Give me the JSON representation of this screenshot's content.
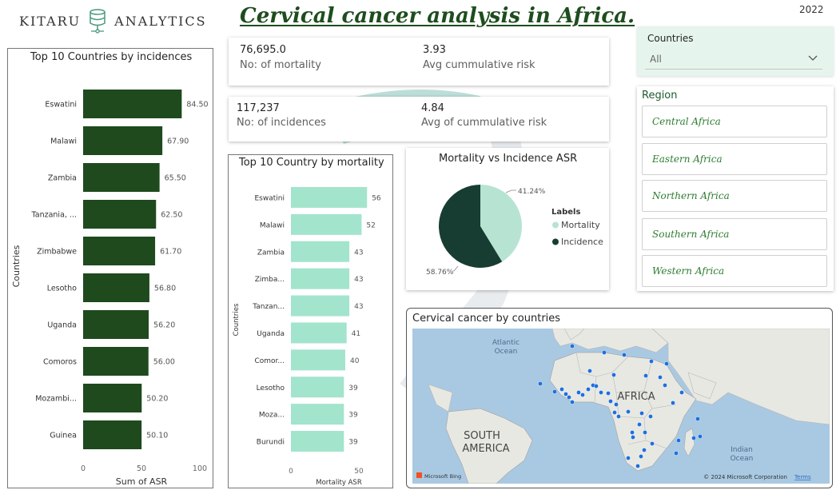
{
  "header": {
    "brand_left": "KITARU",
    "brand_right": "ANALYTICS",
    "title": "Cervical cancer analysis in Africa.",
    "year": "2022"
  },
  "kpis": {
    "mortality_value": "76,695.0",
    "mortality_label": "No: of mortality",
    "avg_risk_value": "3.93",
    "avg_risk_label": "Avg cummulative risk",
    "incidence_value": "117,237",
    "incidence_label": "No: of incidences",
    "avg_risk2_value": "4.84",
    "avg_risk2_label": "Avg of cummulative risk"
  },
  "countries_slicer": {
    "title": "Countries",
    "value": "All"
  },
  "region_slicer": {
    "title": "Region",
    "items": [
      "Central Africa",
      "Eastern Africa",
      "Northern Africa",
      "Southern Africa",
      "Western Africa"
    ]
  },
  "map": {
    "title": "Cervical cancer by countries",
    "labels": [
      "Atlantic",
      "Ocean",
      "AFRICA",
      "SOUTH",
      "AMERICA",
      "Indian",
      "Ocean"
    ],
    "bing": "Microsoft Bing",
    "copyright": "© 2024 Microsoft Corporation",
    "terms": "Terms"
  },
  "chart_data": [
    {
      "type": "bar",
      "orientation": "horizontal",
      "title": "Top 10 Countries by incidences",
      "categories": [
        "Eswatini",
        "Malawi",
        "Zambia",
        "Tanzania, ...",
        "Zimbabwe",
        "Lesotho",
        "Uganda",
        "Comoros",
        "Mozambi...",
        "Guinea"
      ],
      "values": [
        84.5,
        67.9,
        65.5,
        62.5,
        61.7,
        56.8,
        56.2,
        56.0,
        50.2,
        50.1
      ],
      "value_labels": [
        "84.50",
        "67.90",
        "65.50",
        "62.50",
        "61.70",
        "56.80",
        "56.20",
        "56.00",
        "50.20",
        "50.10"
      ],
      "xlabel": "Sum of ASR",
      "ylabel": "Countries",
      "xlim": [
        0,
        100
      ],
      "xticks": [
        "0",
        "50",
        "100"
      ],
      "color": "#1e4a1e"
    },
    {
      "type": "bar",
      "orientation": "horizontal",
      "title": "Top 10 Country by mortality",
      "categories": [
        "Eswatini",
        "Malawi",
        "Zambia",
        "Zimba...",
        "Tanzan...",
        "Uganda",
        "Comor...",
        "Lesotho",
        "Moza...",
        "Burundi"
      ],
      "values": [
        56,
        52,
        43,
        43,
        43,
        41,
        40,
        39,
        39,
        39
      ],
      "value_labels": [
        "56",
        "52",
        "43",
        "43",
        "43",
        "41",
        "40",
        "39",
        "39",
        "39"
      ],
      "xlabel": "Mortality ASR",
      "ylabel": "Countries",
      "xlim": [
        0,
        60
      ],
      "xticks": [
        "0",
        "50"
      ],
      "color": "#a3e4cc"
    },
    {
      "type": "pie",
      "title": "Mortality vs Incidence ASR",
      "legend_title": "Labels",
      "labels": [
        "Mortality",
        "Incidence"
      ],
      "values": [
        41.24,
        58.76
      ],
      "value_labels": [
        "41.24%",
        "58.76%"
      ],
      "colors": [
        "#b7e4d2",
        "#173d32"
      ]
    }
  ]
}
